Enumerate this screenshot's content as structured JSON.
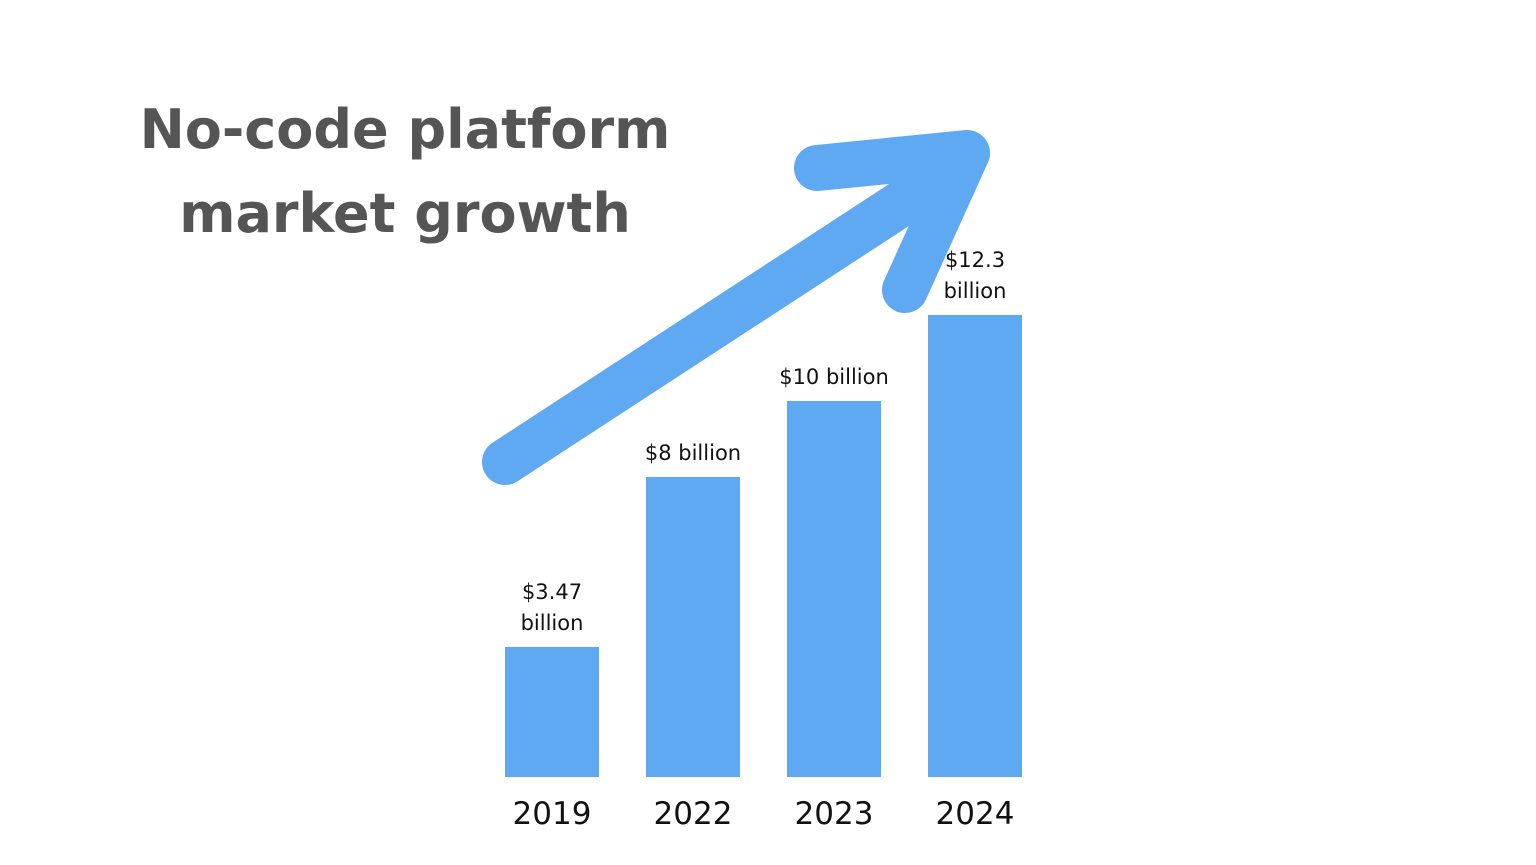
{
  "chart_data": {
    "type": "bar",
    "title": "No-code platform market growth",
    "categories": [
      "2019",
      "2022",
      "2023",
      "2024"
    ],
    "values": [
      3.47,
      8,
      10,
      12.3
    ],
    "value_labels": [
      "$3.47 billion",
      "$8 billion",
      "$10 billion",
      "$12.3 billion"
    ],
    "color": "#5ea9f2"
  }
}
